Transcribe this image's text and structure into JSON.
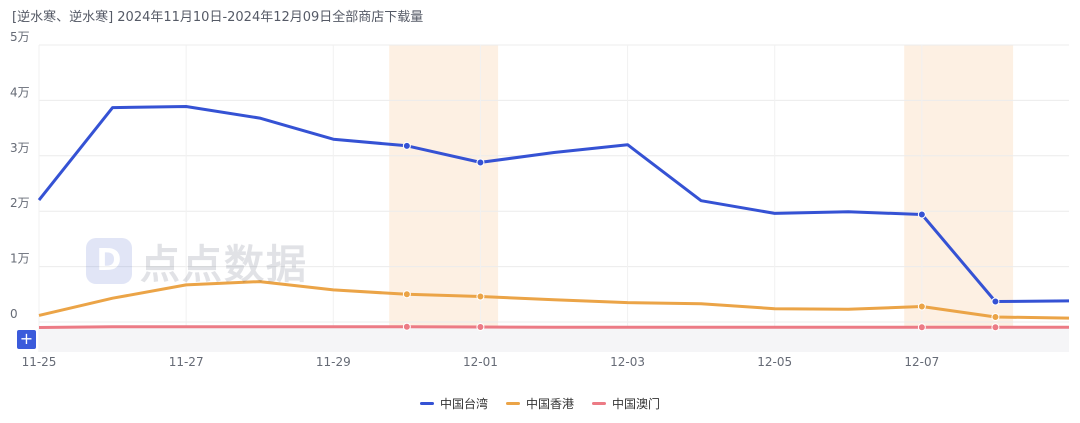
{
  "header": {
    "title": "[逆水寒、逆水寒] 2024年11月10日-2024年12月09日全部商店下载量"
  },
  "watermark": {
    "logo": "D",
    "text": "点点数据"
  },
  "controls": {
    "add_label": "+"
  },
  "colors": {
    "taiwan": "#3552d4",
    "hongkong": "#eba447",
    "macau": "#ec7b85",
    "highlight": "#fdf0e3",
    "grid": "#ececec"
  },
  "chart_data": {
    "type": "line",
    "x": [
      "11-25",
      "11-26",
      "11-27",
      "11-28",
      "11-29",
      "11-30",
      "12-01",
      "12-02",
      "12-03",
      "12-04",
      "12-05",
      "12-06",
      "12-07",
      "12-08",
      "12-09"
    ],
    "x_tick_labels": [
      "11-25",
      "11-27",
      "11-29",
      "12-01",
      "12-03",
      "12-05",
      "12-07"
    ],
    "y_tick_labels": [
      "0",
      "1万",
      "2万",
      "3万",
      "4万",
      "5万"
    ],
    "ylim": [
      0,
      50000
    ],
    "highlight_ranges": [
      [
        "11-30",
        "12-01"
      ],
      [
        "12-07",
        "12-08"
      ]
    ],
    "series": [
      {
        "name": "中国台湾",
        "color": "#3552d4",
        "values": [
          22000,
          38700,
          38900,
          36800,
          33000,
          31800,
          28800,
          30600,
          32000,
          21900,
          19600,
          19900,
          19400,
          3700,
          3800
        ],
        "markers": [
          5,
          6,
          12,
          13
        ]
      },
      {
        "name": "中国香港",
        "color": "#eba447",
        "values": [
          1200,
          4300,
          6700,
          7300,
          5800,
          5000,
          4600,
          4000,
          3500,
          3300,
          2400,
          2300,
          2800,
          900,
          700
        ],
        "markers": [
          5,
          6,
          12,
          13
        ]
      },
      {
        "name": "中国澳门",
        "color": "#ec7b85",
        "values": [
          -1000,
          -850,
          -850,
          -850,
          -850,
          -850,
          -900,
          -950,
          -950,
          -950,
          -950,
          -950,
          -950,
          -950,
          -950
        ],
        "markers": [
          5,
          6,
          12,
          13
        ]
      }
    ],
    "legend_position": "bottom-center"
  }
}
